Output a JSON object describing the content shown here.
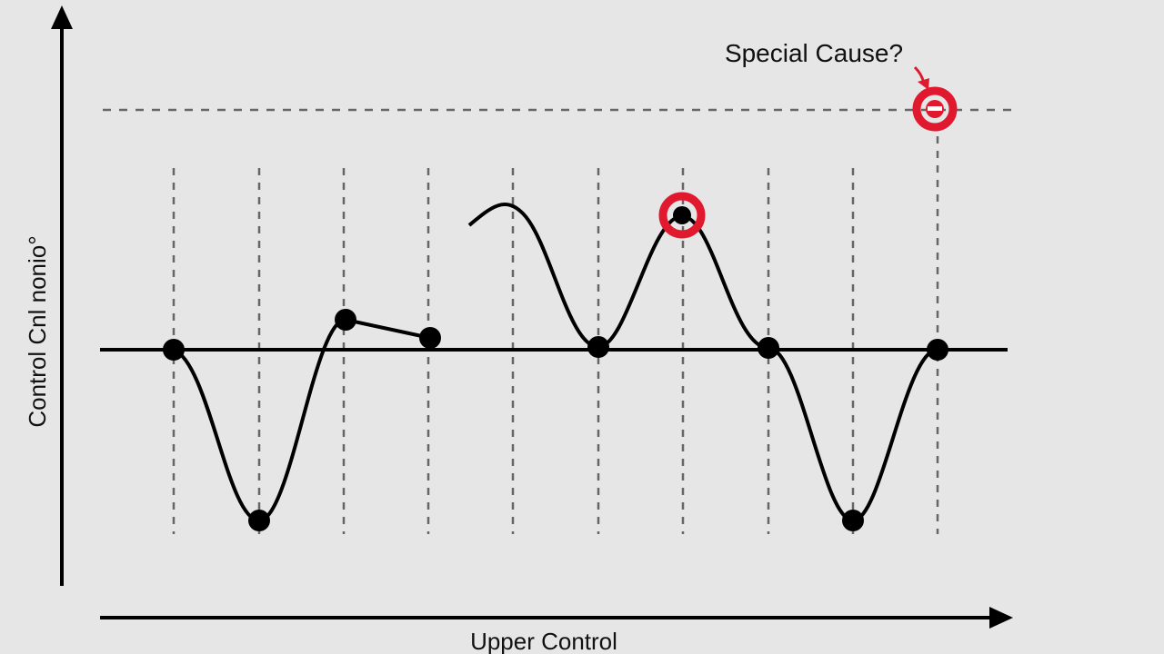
{
  "annotation": "Special Cause?",
  "y_axis_label": "Control Cnl nonio°",
  "x_axis_label": "Upper Control"
}
